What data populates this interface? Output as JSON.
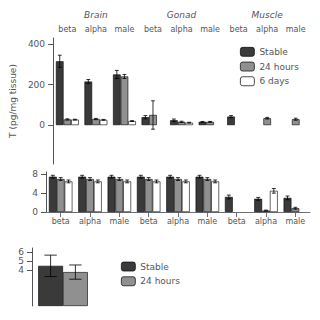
{
  "chart_data": [
    {
      "type": "bar",
      "ylabel": "T (pg/mg tissue)",
      "categories": [
        "beta",
        "alpha",
        "male",
        "beta",
        "alpha",
        "male",
        "beta",
        "alpha",
        "male"
      ],
      "category_groups": [
        "Brain",
        "Gonad",
        "Muscle"
      ],
      "series": [
        {
          "name": "Stable",
          "color": "#3a3a3a",
          "values": [
            315,
            215,
            250,
            39,
            24,
            16,
            42,
            0,
            0
          ],
          "errors": [
            30,
            10,
            20,
            8,
            6,
            2,
            5,
            0,
            0
          ]
        },
        {
          "name": "24 hours",
          "color": "#909090",
          "values": [
            28,
            30,
            240,
            50,
            16,
            16,
            0,
            34,
            29
          ],
          "errors": [
            3,
            3,
            10,
            70,
            3,
            2,
            0,
            4,
            5
          ]
        },
        {
          "name": "6 days",
          "color": "#ffffff",
          "values": [
            27,
            26,
            20,
            0,
            12,
            0,
            0,
            0,
            0
          ],
          "errors": [
            2,
            2,
            2,
            0,
            2,
            0,
            0,
            0,
            0
          ]
        }
      ],
      "ylim": [
        -192,
        430
      ],
      "yticks": [
        0,
        200,
        400
      ],
      "grid": false,
      "legend": "upper right"
    },
    {
      "type": "bar",
      "categories": [
        "beta",
        "alpha",
        "male",
        "beta",
        "alpha",
        "male",
        "beta",
        "alpha",
        "male"
      ],
      "series": [
        {
          "color": "#3a3a3a",
          "values": [
            7.5,
            7.5,
            7.5,
            7.5,
            7.5,
            7.5,
            3.2,
            2.8,
            3.0
          ],
          "errors": [
            0.3,
            0.3,
            0.3,
            0.3,
            0.3,
            0.3,
            0.4,
            0.3,
            0.4
          ]
        },
        {
          "color": "#909090",
          "values": [
            7.0,
            7.0,
            7.0,
            7.0,
            7.0,
            7.0,
            0,
            0.3,
            0.8
          ],
          "errors": [
            0.3,
            0.3,
            0.3,
            0.3,
            0.3,
            0.3,
            0,
            0.1,
            0.2
          ]
        },
        {
          "color": "#ffffff",
          "values": [
            6.5,
            6.5,
            6.5,
            6.5,
            6.5,
            6.5,
            0,
            4.5,
            0
          ],
          "errors": [
            0.3,
            0.3,
            0.3,
            0.3,
            0.3,
            0.3,
            0,
            0.5,
            0
          ]
        }
      ],
      "ylim": [
        0,
        8.5
      ],
      "yticks": [
        0,
        4,
        8
      ],
      "grid": false
    },
    {
      "type": "bar",
      "categories": [
        null
      ],
      "series": [
        {
          "name": "Stable",
          "color": "#3a3a3a",
          "values": [
            4.5
          ],
          "errors": [
            1.2
          ]
        },
        {
          "name": "24 hours",
          "color": "#909090",
          "values": [
            3.8
          ],
          "errors": [
            0.8
          ]
        }
      ],
      "ylim": [
        0,
        6.5
      ],
      "yticks": [
        4,
        5,
        6
      ],
      "tick_labels": "y",
      "grid": false,
      "legend": "right"
    }
  ]
}
